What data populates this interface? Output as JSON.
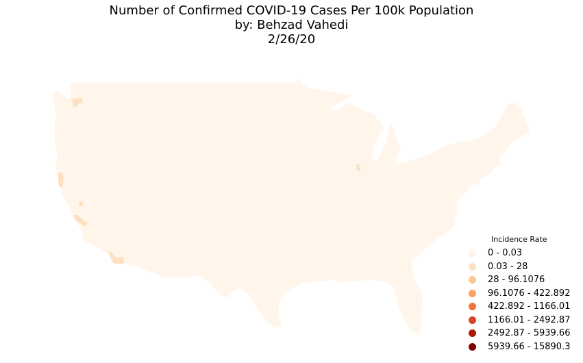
{
  "title": {
    "line1": "Number of Confirmed COVID-19 Cases Per 100k Population",
    "line2": "by: Behzad Vahedi",
    "line3": "2/26/20"
  },
  "map": {
    "base_color": "#fff5eb",
    "highlight_color": "#fde0c2",
    "highlighted_areas": [
      "washington-county",
      "california-north-county",
      "california-central-county",
      "california-south-county",
      "arizona-county",
      "illinois-county"
    ]
  },
  "legend": {
    "title": "Incidence Rate",
    "items": [
      {
        "label": "0 - 0.03",
        "color": "#fff5eb"
      },
      {
        "label": "0.03 - 28",
        "color": "#fde0c2"
      },
      {
        "label": "28 - 96.1076",
        "color": "#fdc895"
      },
      {
        "label": "96.1076 - 422.892",
        "color": "#fda263"
      },
      {
        "label": "422.892 - 1166.01",
        "color": "#f3733b"
      },
      {
        "label": "1166.01 - 2492.87",
        "color": "#d94523"
      },
      {
        "label": "2492.87 - 5939.66",
        "color": "#ad1807"
      },
      {
        "label": "5939.66 - 15890.3",
        "color": "#7f0000"
      }
    ]
  }
}
